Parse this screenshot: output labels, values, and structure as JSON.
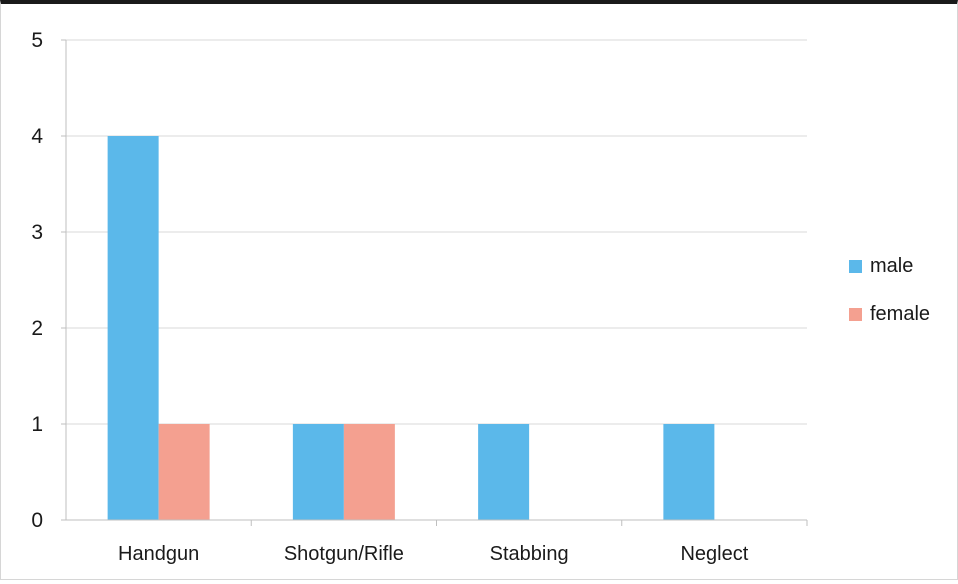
{
  "chart_data": {
    "type": "bar",
    "title": "",
    "xlabel": "",
    "ylabel": "",
    "categories": [
      "Handgun",
      "Shotgun/Rifle",
      "Stabbing",
      "Neglect"
    ],
    "series": [
      {
        "name": "male",
        "values": [
          4,
          1,
          1,
          1
        ],
        "color": "#5bb8ea"
      },
      {
        "name": "female",
        "values": [
          1,
          1,
          0,
          0
        ],
        "color": "#f4a090"
      }
    ],
    "ylim": [
      0,
      5
    ],
    "yticks": [
      0,
      1,
      2,
      3,
      4,
      5
    ],
    "grid": true,
    "legend": "right"
  }
}
